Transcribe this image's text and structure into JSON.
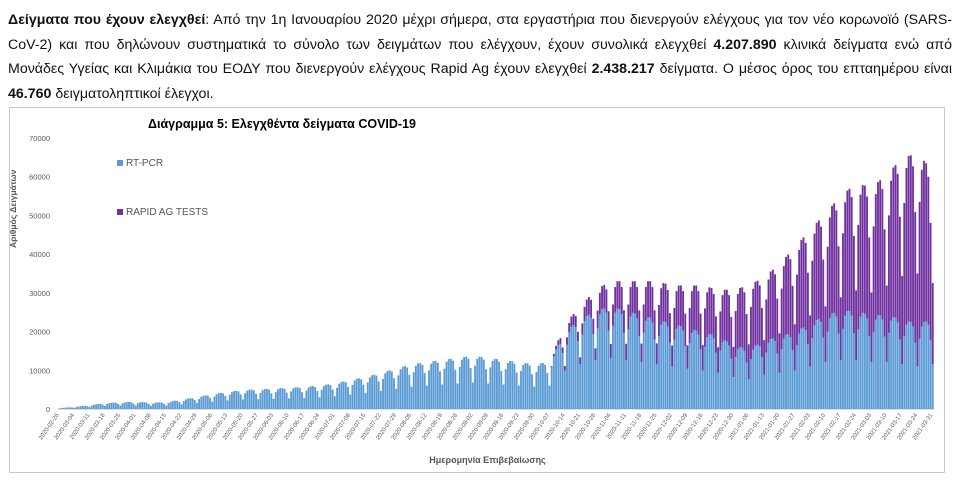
{
  "paragraph": {
    "lead_bold": "Δείγματα που έχουν ελεγχθεί",
    "text_1": ": Από την 1η Ιανουαρίου 2020 μέχρι σήμερα, στα εργαστήρια που διενεργούν ελέγχους για τον νέο κορωνοϊό (SARS-CoV-2) και που δηλώνουν συστηματικά το σύνολο των δειγμάτων που ελέγχουν, έχουν συνολικά ελεγχθεί ",
    "pcr_total": "4.207.890",
    "text_2": " κλινικά δείγματα ενώ από Μονάδες Υγείας και Κλιμάκια του ΕΟΔΥ που διενεργούν ελέγχους Rapid Ag έχουν ελεγχθεί ",
    "rapid_total": "2.438.217",
    "text_3": " δείγματα. Ο μέσος όρος του επταημέρου είναι ",
    "daily_avg": "46.760",
    "text_4": " δειγματοληπτικοί έλεγχοι."
  },
  "chart_data": {
    "type": "bar",
    "stacked": true,
    "title": "Διάγραμμα 5: Ελεγχθέντα δείγματα COVID-19",
    "xlabel": "Ημερομηνία Επιβεβαίωσης",
    "ylabel": "Αριθμός Δειγμάτων",
    "ylim": [
      0,
      70000
    ],
    "yticks": [
      0,
      10000,
      20000,
      30000,
      40000,
      50000,
      60000,
      70000
    ],
    "grid": false,
    "legend_placement": "top-left",
    "x_start": "2020-02-26",
    "x_end": "2021-03-31",
    "x_tick_labels": [
      "2020-02-26",
      "2020-03-04",
      "2020-03-11",
      "2020-03-18",
      "2020-03-25",
      "2020-04-01",
      "2020-04-08",
      "2020-04-15",
      "2020-04-22",
      "2020-04-29",
      "2020-05-06",
      "2020-05-13",
      "2020-05-20",
      "2020-05-27",
      "2020-06-03",
      "2020-06-10",
      "2020-06-17",
      "2020-06-24",
      "2020-07-01",
      "2020-07-08",
      "2020-07-15",
      "2020-07-22",
      "2020-07-29",
      "2020-08-05",
      "2020-08-12",
      "2020-08-19",
      "2020-08-26",
      "2020-09-02",
      "2020-09-09",
      "2020-09-16",
      "2020-09-23",
      "2020-09-30",
      "2020-10-07",
      "2020-10-14",
      "2020-10-21",
      "2020-10-28",
      "2020-11-04",
      "2020-11-11",
      "2020-11-18",
      "2020-11-25",
      "2020-12-02",
      "2020-12-09",
      "2020-12-16",
      "2020-12-23",
      "2020-12-30",
      "2021-01-06",
      "2021-01-13",
      "2021-01-20",
      "2021-01-27",
      "2021-02-03",
      "2021-02-10",
      "2021-02-17",
      "2021-02-24",
      "2021-03-03",
      "2021-03-10",
      "2021-03-17",
      "2021-03-24",
      "2021-03-31"
    ],
    "series": [
      {
        "name": "RT-PCR",
        "color": "#5b9bd5",
        "weekly_values": [
          200,
          500,
          900,
          1400,
          1600,
          1700,
          1500,
          1600,
          2200,
          2800,
          3500,
          4000,
          4500,
          4600,
          4800,
          5000,
          5200,
          5500,
          6000,
          6800,
          7500,
          8500,
          9500,
          10500,
          11000,
          11500,
          12000,
          12500,
          12000,
          11500,
          11000,
          10500,
          11000,
          18000,
          21000,
          23000,
          24000,
          23000,
          22000,
          21000,
          20000,
          19000,
          18000,
          17000,
          15000,
          14000,
          16000,
          17000,
          18000,
          20000,
          22000,
          23000,
          23000,
          22000,
          22000,
          21000,
          20000,
          21000
        ]
      },
      {
        "name": "RAPID AG TESTS",
        "color": "#7030a0",
        "weekly_values": [
          0,
          0,
          0,
          0,
          0,
          0,
          0,
          0,
          0,
          0,
          0,
          0,
          0,
          0,
          0,
          0,
          0,
          0,
          0,
          0,
          0,
          0,
          0,
          0,
          0,
          0,
          0,
          0,
          0,
          0,
          0,
          0,
          0,
          2000,
          3000,
          5000,
          6000,
          7000,
          8000,
          9000,
          9000,
          10000,
          11000,
          11000,
          13000,
          15000,
          15000,
          17000,
          20000,
          22000,
          24000,
          27000,
          30000,
          30000,
          33000,
          38000,
          40000,
          35000
        ]
      }
    ]
  }
}
